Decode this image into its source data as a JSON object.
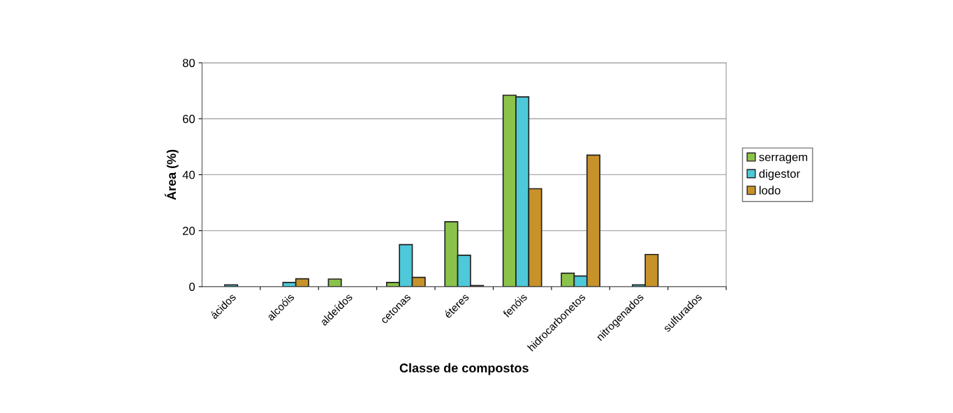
{
  "chart_data": {
    "type": "bar",
    "xlabel": "Classe de compostos",
    "ylabel": "Área (%)",
    "categories": [
      "ácidos",
      "alcoóis",
      "aldeídos",
      "cetonas",
      "éteres",
      "fenóis",
      "hidrocarbonetos",
      "nitrogenados",
      "sulfurados"
    ],
    "series": [
      {
        "name": "serragem",
        "color": "#8bc34a",
        "values": [
          null,
          null,
          2.7,
          1.5,
          23.2,
          68.4,
          4.8,
          null,
          null
        ]
      },
      {
        "name": "digestor",
        "color": "#4ec9d9",
        "values": [
          0.6,
          1.5,
          null,
          15.0,
          11.2,
          67.8,
          3.8,
          0.6,
          null
        ]
      },
      {
        "name": "lodo",
        "color": "#c8922a",
        "values": [
          null,
          2.8,
          null,
          3.3,
          0.4,
          35.0,
          47.0,
          11.5,
          null
        ]
      }
    ],
    "ylim": [
      0,
      80
    ],
    "yticks": [
      0,
      20,
      40,
      60,
      80
    ],
    "grid": "y",
    "legend": "right"
  }
}
